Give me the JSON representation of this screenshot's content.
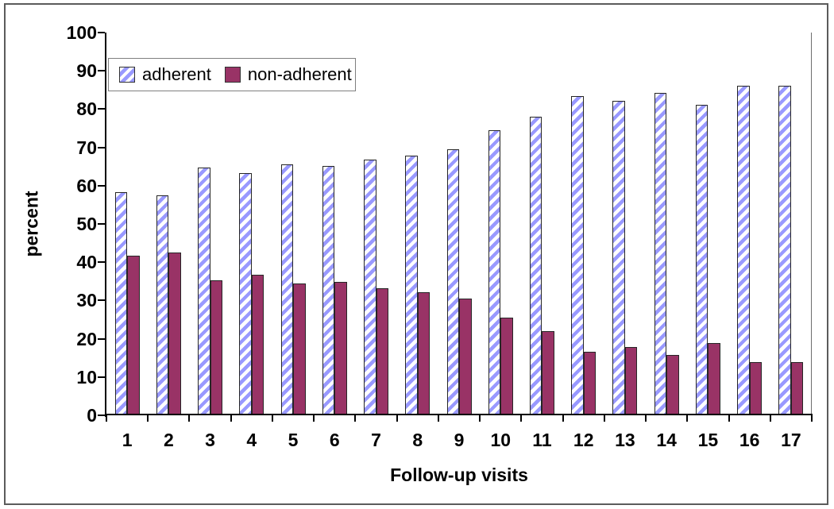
{
  "figure": {
    "frame_color": "#5b5b5b",
    "background": "#ffffff"
  },
  "chart_data": {
    "type": "bar",
    "title": "",
    "xlabel": "Follow-up visits",
    "ylabel": "percent",
    "categories": [
      "1",
      "2",
      "3",
      "4",
      "5",
      "6",
      "7",
      "8",
      "9",
      "10",
      "11",
      "12",
      "13",
      "14",
      "15",
      "16",
      "17"
    ],
    "series": [
      {
        "name": "adherent",
        "pattern": "diagonal-hatch",
        "fill": "#ffffff",
        "hatch_color": "#9999ff",
        "border": "#262626",
        "values": [
          58.2,
          57.5,
          64.8,
          63.2,
          65.6,
          65.1,
          66.8,
          67.9,
          69.6,
          74.5,
          78.0,
          83.5,
          82.2,
          84.2,
          81.2,
          86.0,
          86.0
        ]
      },
      {
        "name": "non-adherent",
        "pattern": "solid",
        "fill": "#993366",
        "border": "#262626",
        "values": [
          41.8,
          42.5,
          35.2,
          36.8,
          34.4,
          34.9,
          33.2,
          32.1,
          30.4,
          25.5,
          22.0,
          16.5,
          17.8,
          15.8,
          18.8,
          14.0,
          14.0
        ]
      }
    ],
    "ylim": [
      0,
      100
    ],
    "ytick_step": 10,
    "grid": false,
    "legend_position": "top-left-inside",
    "axis_color": "#000000"
  }
}
